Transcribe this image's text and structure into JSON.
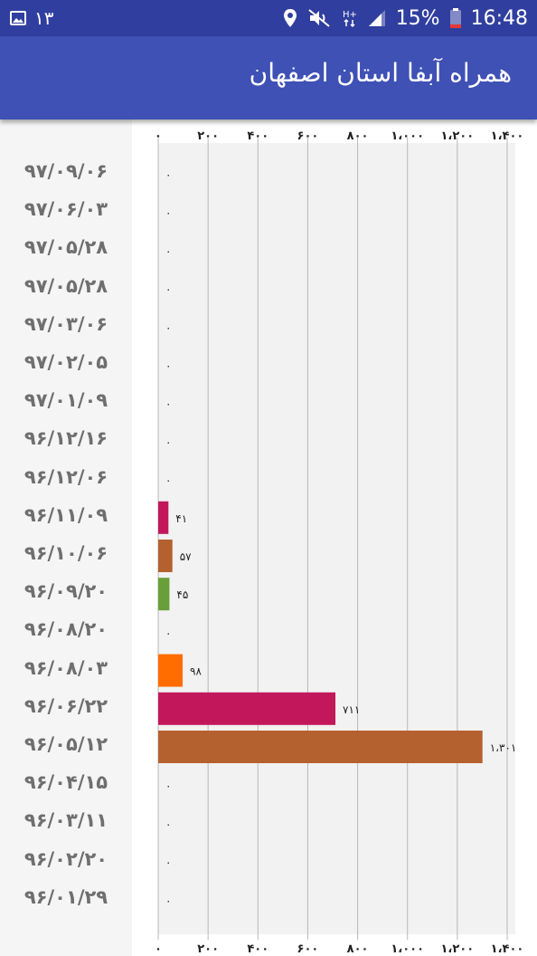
{
  "status_bar": {
    "notification_count": "۱۳",
    "battery": "15%",
    "time": "16:48",
    "icons": [
      "image-icon",
      "location-icon",
      "mute-icon",
      "data-hplus-icon",
      "signal-icon",
      "battery-icon"
    ]
  },
  "app_bar": {
    "title": "همراه آبفا استان اصفهان",
    "color": "#3f51b5"
  },
  "chart_data": {
    "type": "bar",
    "orientation": "horizontal",
    "categories": [
      "۹۷/۰۹/۰۶",
      "۹۷/۰۶/۰۳",
      "۹۷/۰۵/۲۸",
      "۹۷/۰۵/۲۸",
      "۹۷/۰۳/۰۶",
      "۹۷/۰۲/۰۵",
      "۹۷/۰۱/۰۹",
      "۹۶/۱۲/۱۶",
      "۹۶/۱۲/۰۶",
      "۹۶/۱۱/۰۹",
      "۹۶/۱۰/۰۶",
      "۹۶/۰۹/۲۰",
      "۹۶/۰۸/۲۰",
      "۹۶/۰۸/۰۳",
      "۹۶/۰۶/۲۲",
      "۹۶/۰۵/۱۲",
      "۹۶/۰۴/۱۵",
      "۹۶/۰۳/۱۱",
      "۹۶/۰۲/۲۰",
      "۹۶/۰۱/۲۹"
    ],
    "values": [
      0,
      0,
      0,
      0,
      0,
      0,
      0,
      0,
      0,
      41,
      57,
      45,
      0,
      98,
      711,
      1301,
      0,
      0,
      0,
      0
    ],
    "value_labels": [
      "۰",
      "۰",
      "۰",
      "۰",
      "۰",
      "۰",
      "۰",
      "۰",
      "۰",
      "۴۱",
      "۵۷",
      "۴۵",
      "۰",
      "۹۸",
      "۷۱۱",
      "۱،۳۰۱",
      "۰",
      "۰",
      "۰",
      "۰"
    ],
    "colors": [
      "#c2185b",
      "#c2185b",
      "#c2185b",
      "#c2185b",
      "#c2185b",
      "#c2185b",
      "#c2185b",
      "#c2185b",
      "#c2185b",
      "#c2185b",
      "#b5612f",
      "#689f38",
      "#c2185b",
      "#ff6d00",
      "#c2185b",
      "#b5612f",
      "#c2185b",
      "#c2185b",
      "#c2185b",
      "#c2185b"
    ],
    "xlim": [
      0,
      1400
    ],
    "ticks": [
      0,
      200,
      400,
      600,
      800,
      1000,
      1200,
      1400
    ],
    "tick_labels": [
      "۰",
      "۲۰۰",
      "۴۰۰",
      "۶۰۰",
      "۸۰۰",
      "۱،۰۰۰",
      "۱،۲۰۰",
      "۱،۴۰۰"
    ],
    "axis_position": "top-and-bottom",
    "grid": true,
    "title": "",
    "xlabel": "",
    "ylabel": ""
  }
}
